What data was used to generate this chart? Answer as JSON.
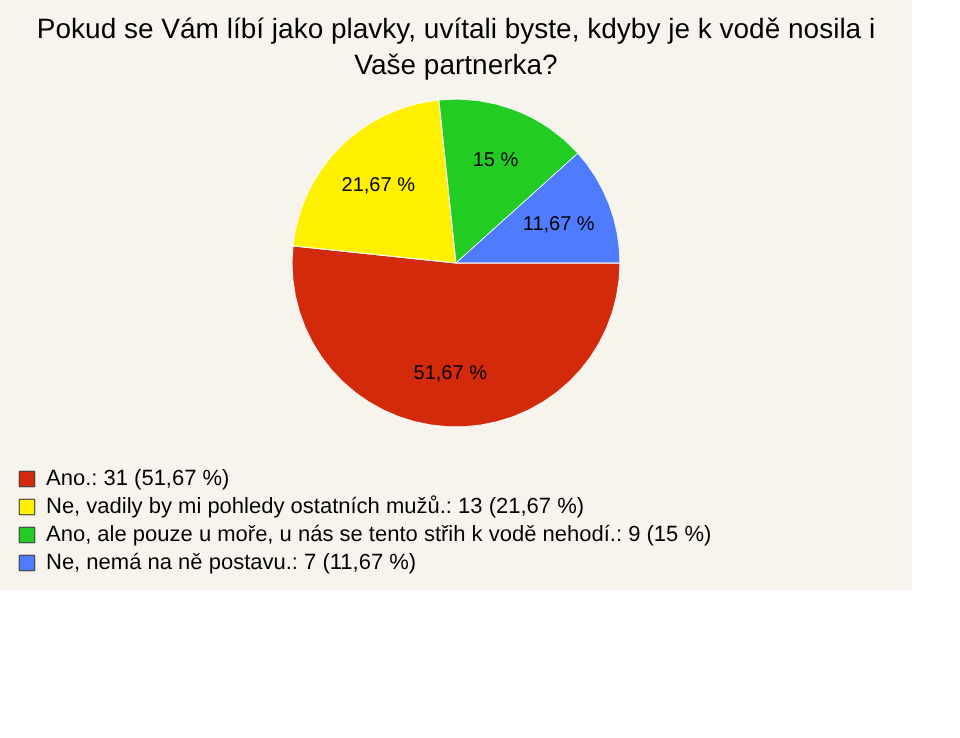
{
  "chart_data": {
    "type": "pie",
    "title": "Pokud se Vám líbí jako plavky, uvítali byste, kdyby je k vodě nosila i Vaše partnerka?",
    "categories": [
      "Ano.: 31 (51,67 %)",
      "Ne, vadily by mi pohledy ostatních mužů.: 13 (21,67 %)",
      "Ano, ale pouze u moře, u nás se tento střih k vodě nehodí.: 9 (15 %)",
      "Ne, nemá na ně postavu.: 7 (11,67 %)"
    ],
    "values": [
      51.67,
      21.67,
      15,
      11.67
    ],
    "colors": [
      "#d42a0c",
      "#fff000",
      "#22cc22",
      "#4f7bff"
    ],
    "value_labels": [
      "51,67 %",
      "21,67 %",
      "15 %",
      "11,67 %"
    ],
    "legend": "bottom left"
  }
}
